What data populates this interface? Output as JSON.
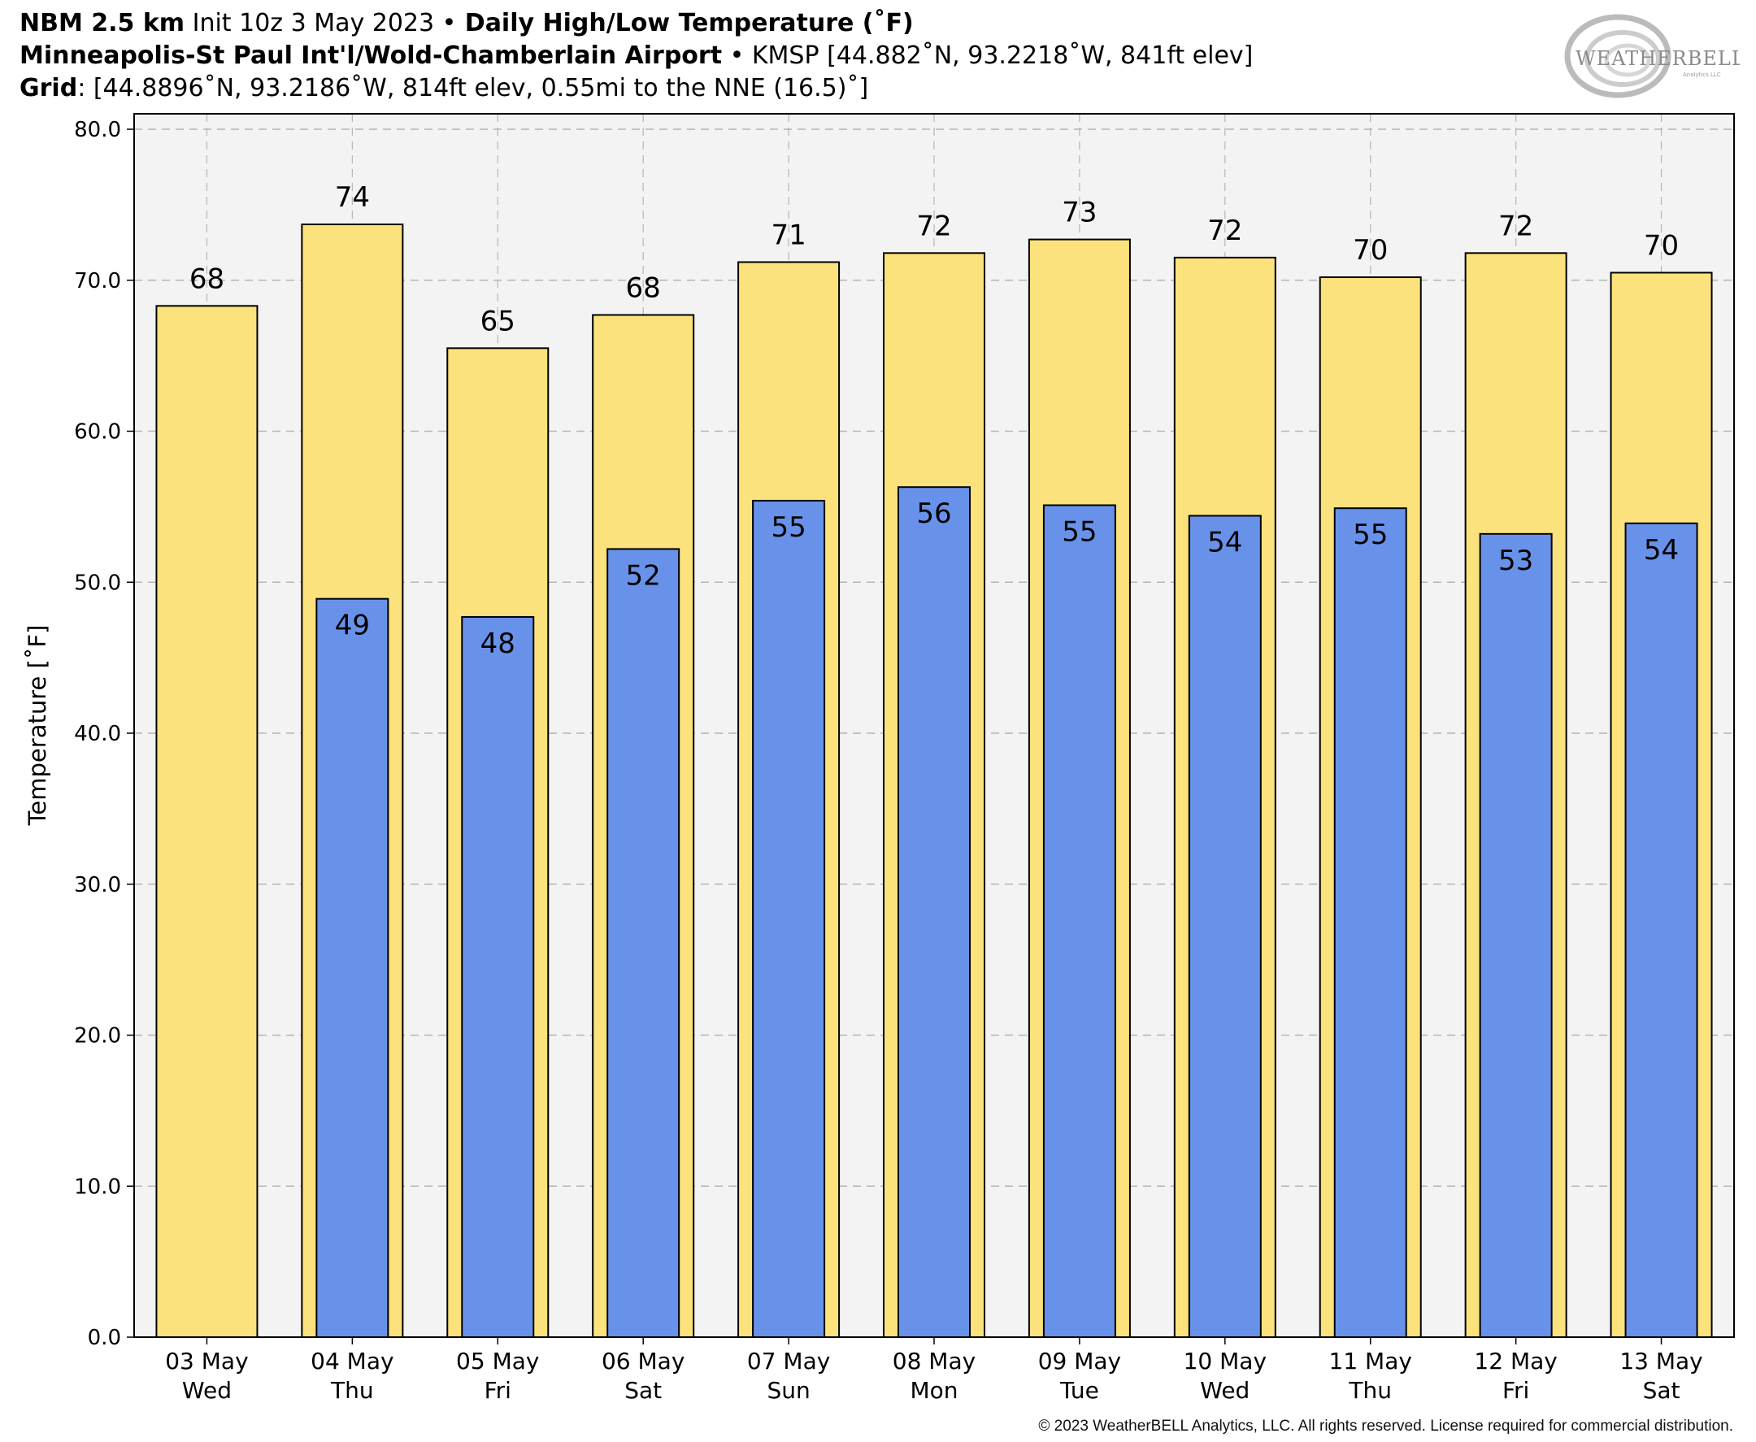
{
  "header": {
    "line1": {
      "model": "NBM 2.5 km",
      "init": " Init 10z 3 May 2023 ",
      "bullet": "•",
      "product": " Daily High/Low Temperature (˚F)"
    },
    "line2": {
      "station": "Minneapolis-St Paul Int'l/Wold-Chamberlain Airport",
      "bullet": " • ",
      "info": "KMSP [44.882˚N, 93.2218˚W, 841ft elev]"
    },
    "line3": {
      "label": "Grid",
      "info": ": [44.8896˚N, 93.2186˚W, 814ft elev, 0.55mi to the NNE (16.5)˚]"
    }
  },
  "logo_text": "WeatherBELL",
  "copyright": "© 2023 WeatherBELL Analytics, LLC. All rights reserved. License required for commercial distribution.",
  "colors": {
    "high": "#fbe27c",
    "low": "#6892ea",
    "plot_bg": "#f4f3f4",
    "grid": "#b5b5b5"
  },
  "chart_data": {
    "type": "bar",
    "ylabel": "Temperature [˚F]",
    "ylim": [
      0,
      80
    ],
    "yticks": [
      "0.0",
      "10.0",
      "20.0",
      "30.0",
      "40.0",
      "50.0",
      "60.0",
      "70.0",
      "80.0"
    ],
    "grid": true,
    "categories": [
      [
        "03 May",
        "Wed"
      ],
      [
        "04 May",
        "Thu"
      ],
      [
        "05 May",
        "Fri"
      ],
      [
        "06 May",
        "Sat"
      ],
      [
        "07 May",
        "Sun"
      ],
      [
        "08 May",
        "Mon"
      ],
      [
        "09 May",
        "Tue"
      ],
      [
        "10 May",
        "Wed"
      ],
      [
        "11 May",
        "Thu"
      ],
      [
        "12 May",
        "Fri"
      ],
      [
        "13 May",
        "Sat"
      ]
    ],
    "series": [
      {
        "values": [
          68.3,
          73.7,
          65.5,
          67.7,
          71.2,
          71.8,
          72.7,
          71.5,
          70.2,
          71.8,
          70.5
        ],
        "labels": [
          "68",
          "74",
          "65",
          "68",
          "71",
          "72",
          "73",
          "72",
          "70",
          "72",
          "70"
        ]
      },
      {
        "values": [
          null,
          48.9,
          47.7,
          52.2,
          55.4,
          56.3,
          55.1,
          54.4,
          54.9,
          53.2,
          53.9
        ],
        "labels": [
          null,
          "49",
          "48",
          "52",
          "55",
          "56",
          "55",
          "54",
          "55",
          "53",
          "54"
        ]
      }
    ]
  }
}
